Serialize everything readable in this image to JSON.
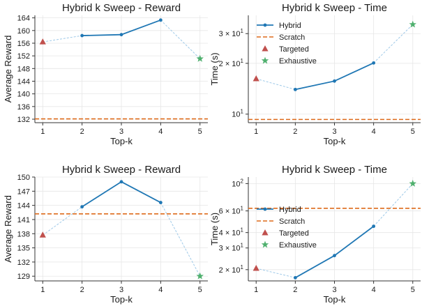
{
  "chart_data": [
    {
      "type": "line",
      "title": "Hybrid k Sweep - Reward",
      "xlabel": "Top-k",
      "ylabel": "Average Reward",
      "yscale": "linear",
      "ylim": [
        130.9,
        164.8
      ],
      "yticks": [
        132,
        136,
        140,
        144,
        148,
        152,
        156,
        160,
        164
      ],
      "xticks": [
        1,
        2,
        3,
        4,
        5
      ],
      "grid": true,
      "legend": null,
      "series": [
        {
          "name": "Hybrid",
          "kind": "line-marker",
          "color": "#1f77b4",
          "x": [
            2,
            3,
            4
          ],
          "values": [
            158.4,
            158.7,
            163.3
          ]
        },
        {
          "name": "Scratch",
          "kind": "hline",
          "color": "#dd6a1a",
          "values": [
            132.1
          ]
        },
        {
          "name": "Targeted",
          "kind": "point",
          "marker": "triangle",
          "color": "#c0504d",
          "x": [
            1
          ],
          "values": [
            156.4
          ]
        },
        {
          "name": "Exhaustive",
          "kind": "point",
          "marker": "star",
          "color": "#4fb06e",
          "x": [
            5
          ],
          "values": [
            151.1
          ]
        }
      ],
      "connectors": [
        {
          "x": [
            1,
            2
          ],
          "values": [
            156.4,
            158.4
          ]
        },
        {
          "x": [
            4,
            5
          ],
          "values": [
            163.3,
            151.1
          ]
        }
      ]
    },
    {
      "type": "line",
      "title": "Hybrid k Sweep - Time",
      "xlabel": "Top-k",
      "ylabel": "Time (s)",
      "yscale": "log",
      "ylim": [
        8.9,
        38.5
      ],
      "yticks": [
        10,
        20,
        30
      ],
      "yticklabels": [
        "10^1",
        "2 × 10^1",
        "3 × 10^1"
      ],
      "xticks": [
        1,
        2,
        3,
        4,
        5
      ],
      "grid": true,
      "legend": "top-left",
      "series": [
        {
          "name": "Hybrid",
          "kind": "line-marker",
          "color": "#1f77b4",
          "x": [
            2,
            3,
            4
          ],
          "values": [
            14.0,
            15.7,
            20.1
          ]
        },
        {
          "name": "Scratch",
          "kind": "hline",
          "color": "#dd6a1a",
          "values": [
            9.3
          ]
        },
        {
          "name": "Targeted",
          "kind": "point",
          "marker": "triangle",
          "color": "#c0504d",
          "x": [
            1
          ],
          "values": [
            16.2
          ]
        },
        {
          "name": "Exhaustive",
          "kind": "point",
          "marker": "star",
          "color": "#4fb06e",
          "x": [
            5
          ],
          "values": [
            34.0
          ]
        }
      ],
      "connectors": [
        {
          "x": [
            1,
            2
          ],
          "values": [
            16.2,
            14.0
          ]
        },
        {
          "x": [
            4,
            5
          ],
          "values": [
            20.1,
            34.0
          ]
        }
      ]
    },
    {
      "type": "line",
      "title": "Hybrid k Sweep - Reward",
      "xlabel": "Top-k",
      "ylabel": "Average Reward",
      "yscale": "linear",
      "ylim": [
        128.0,
        150.0
      ],
      "yticks": [
        129,
        132,
        135,
        138,
        141,
        144,
        147,
        150
      ],
      "xticks": [
        1,
        2,
        3,
        4,
        5
      ],
      "grid": true,
      "legend": null,
      "series": [
        {
          "name": "Hybrid",
          "kind": "line-marker",
          "color": "#1f77b4",
          "x": [
            2,
            3,
            4
          ],
          "values": [
            143.7,
            149.0,
            144.6
          ]
        },
        {
          "name": "Scratch",
          "kind": "hline",
          "color": "#dd6a1a",
          "values": [
            142.2
          ]
        },
        {
          "name": "Targeted",
          "kind": "point",
          "marker": "triangle",
          "color": "#c0504d",
          "x": [
            1
          ],
          "values": [
            137.7
          ]
        },
        {
          "name": "Exhaustive",
          "kind": "point",
          "marker": "star",
          "color": "#4fb06e",
          "x": [
            5
          ],
          "values": [
            129.0
          ]
        }
      ],
      "connectors": [
        {
          "x": [
            1,
            2
          ],
          "values": [
            137.7,
            143.7
          ]
        },
        {
          "x": [
            4,
            5
          ],
          "values": [
            144.6,
            129.0
          ]
        }
      ]
    },
    {
      "type": "line",
      "title": "Hybrid k Sweep - Time",
      "xlabel": "Top-k",
      "ylabel": "Time (s)",
      "yscale": "log",
      "ylim": [
        16.2,
        113
      ],
      "yticks": [
        20,
        30,
        40,
        60,
        100
      ],
      "yticklabels": [
        "2 × 10^1",
        "3 × 10^1",
        "4 × 10^1",
        "6 × 10^1",
        "10^2"
      ],
      "xticks": [
        1,
        2,
        3,
        4,
        5
      ],
      "grid": true,
      "legend": "upper-left",
      "series": [
        {
          "name": "Hybrid",
          "kind": "line-marker",
          "color": "#1f77b4",
          "x": [
            2,
            3,
            4
          ],
          "values": [
            17.2,
            26.0,
            45.0
          ]
        },
        {
          "name": "Scratch",
          "kind": "hline",
          "color": "#dd6a1a",
          "values": [
            63.0
          ]
        },
        {
          "name": "Targeted",
          "kind": "point",
          "marker": "triangle",
          "color": "#c0504d",
          "x": [
            1
          ],
          "values": [
            20.5
          ]
        },
        {
          "name": "Exhaustive",
          "kind": "point",
          "marker": "star",
          "color": "#4fb06e",
          "x": [
            5
          ],
          "values": [
            100.0
          ]
        }
      ],
      "connectors": [
        {
          "x": [
            1,
            2
          ],
          "values": [
            20.5,
            17.2
          ]
        },
        {
          "x": [
            4,
            5
          ],
          "values": [
            45.0,
            100.0
          ]
        }
      ]
    }
  ]
}
